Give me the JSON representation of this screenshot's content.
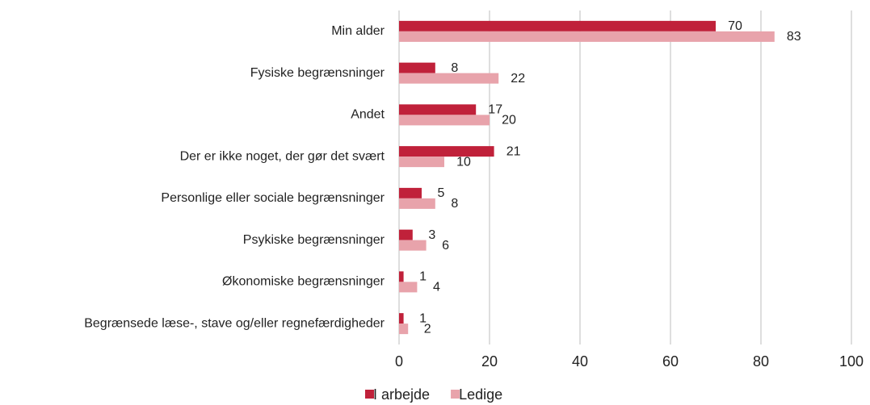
{
  "chart_data": {
    "type": "bar",
    "orientation": "horizontal",
    "categories": [
      "Min alder",
      "Fysiske begrænsninger",
      "Andet",
      "Der er ikke noget, der gør det svært",
      "Personlige eller sociale begrænsninger",
      "Psykiske begrænsninger",
      "Økonomiske begrænsninger",
      "Begrænsede læse-, stave og/eller regnefærdigheder"
    ],
    "series": [
      {
        "name": "I arbejde",
        "color": "#c0213a",
        "values": [
          70,
          8,
          17,
          21,
          5,
          3,
          1,
          1
        ]
      },
      {
        "name": "Ledige",
        "color": "#e8a3ab",
        "values": [
          83,
          22,
          20,
          10,
          8,
          6,
          4,
          2
        ]
      }
    ],
    "xlim": [
      0,
      100
    ],
    "xticks": [
      0,
      20,
      40,
      60,
      80,
      100
    ],
    "grid": true,
    "legend": "bottom"
  }
}
